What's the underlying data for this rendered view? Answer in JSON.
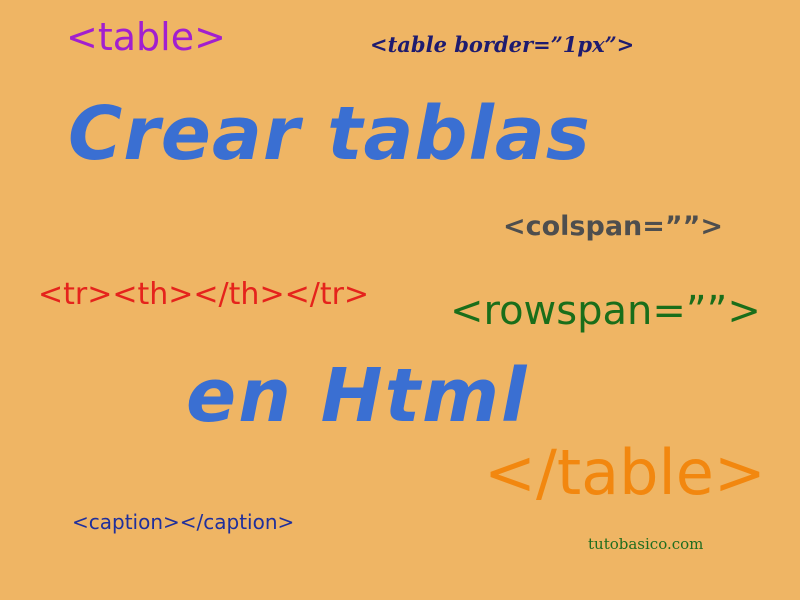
{
  "texts": {
    "table_open": "<table>",
    "table_border": "<table border=”1px”>",
    "title_line1": "Crear tablas",
    "colspan": "<colspan=””>",
    "tr_th": "<tr><th></th></tr>",
    "rowspan": "<rowspan=””>",
    "title_line2": "en Html",
    "table_close": "</table>",
    "caption": "<caption></caption>",
    "site": "tutobasico.com"
  },
  "colors": {
    "background": "#efb564",
    "title": "#3a6fd2",
    "table_open": "#a21fcf",
    "table_border": "#1e1b6f",
    "colspan": "#4e4e4e",
    "tr_th": "#e5231c",
    "rowspan": "#1a6e1a",
    "table_close": "#f2870f",
    "caption": "#1f2f9c",
    "site": "#1f6d1f"
  }
}
